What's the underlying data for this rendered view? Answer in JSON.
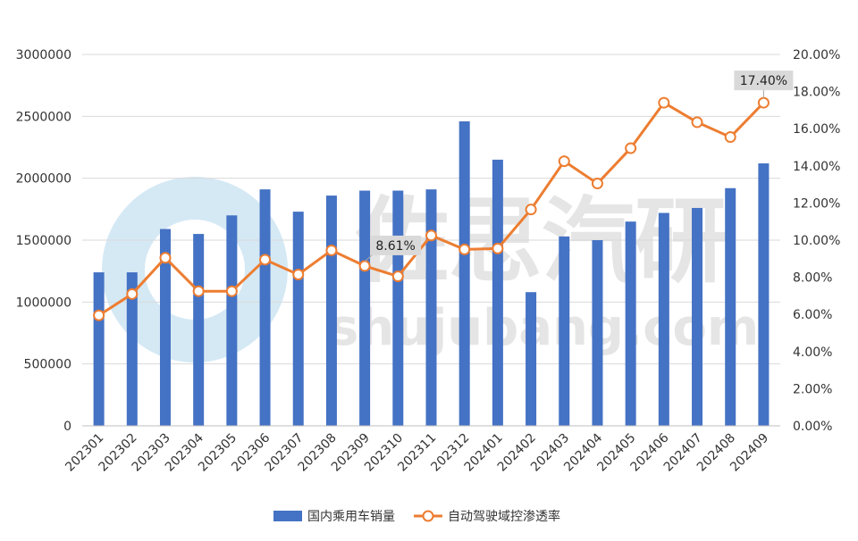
{
  "chart_data": {
    "type": "bar",
    "categories": [
      "202301",
      "202302",
      "202303",
      "202304",
      "202305",
      "202306",
      "202307",
      "202308",
      "202309",
      "202310",
      "202311",
      "202312",
      "202401",
      "202402",
      "202403",
      "202404",
      "202405",
      "202406",
      "202407",
      "202408",
      "202409"
    ],
    "series": [
      {
        "name": "国内乘用车销量",
        "type": "bar",
        "axis": "left",
        "color": "#4472C4",
        "values": [
          1240000,
          1240000,
          1590000,
          1550000,
          1700000,
          1910000,
          1730000,
          1860000,
          1900000,
          1900000,
          1910000,
          2460000,
          2150000,
          1080000,
          1530000,
          1500000,
          1650000,
          1720000,
          1760000,
          1920000,
          2120000
        ]
      },
      {
        "name": "自动驾驶域控渗透率",
        "type": "line",
        "axis": "right",
        "color": "#ED7D31",
        "values": [
          5.95,
          7.1,
          9.05,
          7.25,
          7.25,
          8.95,
          8.15,
          9.45,
          8.61,
          8.05,
          10.25,
          9.5,
          9.55,
          11.65,
          14.25,
          13.05,
          14.95,
          17.4,
          16.35,
          15.55,
          17.4
        ]
      }
    ],
    "y_left": {
      "min": 0,
      "max": 3000000,
      "step": 500000,
      "tick_labels": [
        "0",
        "500000",
        "1000000",
        "1500000",
        "2000000",
        "2500000",
        "3000000"
      ]
    },
    "y_right": {
      "min": 0,
      "max": 20,
      "step": 2,
      "tick_labels": [
        "0.00%",
        "2.00%",
        "4.00%",
        "6.00%",
        "8.00%",
        "10.00%",
        "12.00%",
        "14.00%",
        "16.00%",
        "18.00%",
        "20.00%"
      ]
    },
    "annotations": [
      {
        "index": 8,
        "text": "8.61%"
      },
      {
        "index": 20,
        "text": "17.40%"
      }
    ],
    "grid": true,
    "legend_position": "bottom"
  },
  "watermark": {
    "text_cn": "佐思汽研",
    "text_en": "shujubang.com"
  }
}
